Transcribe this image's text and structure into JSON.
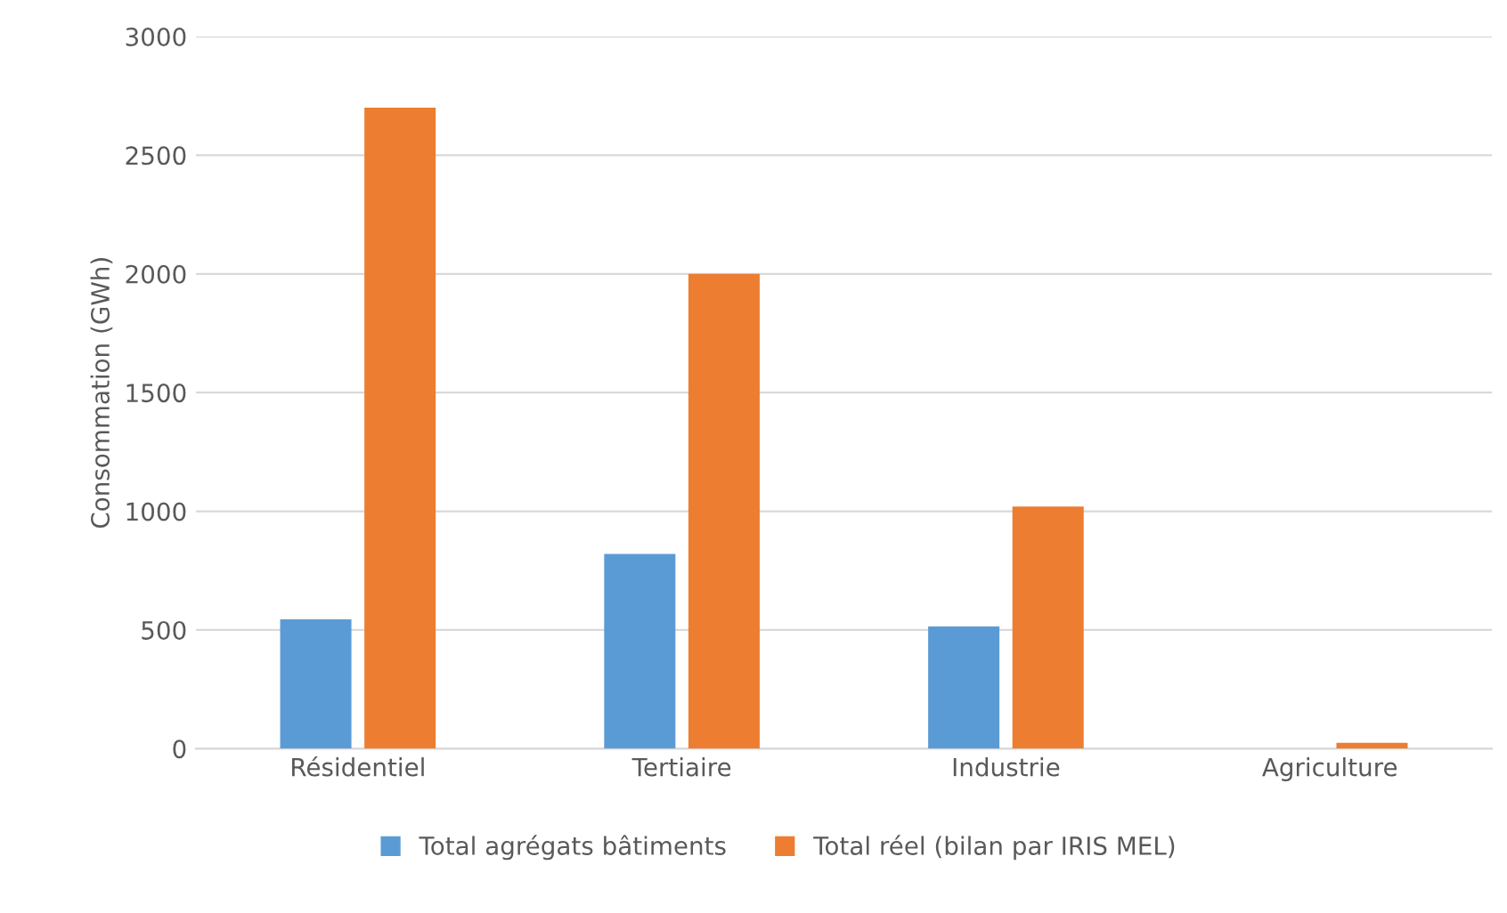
{
  "chart_data": {
    "type": "bar",
    "ylabel": "Consommation (GWh)",
    "categories": [
      "Résidentiel",
      "Tertiaire",
      "Industrie",
      "Agriculture"
    ],
    "series": [
      {
        "name": "Total agrégats bâtiments",
        "color": "#5b9bd5",
        "values": [
          545,
          820,
          515,
          0
        ]
      },
      {
        "name": "Total réel (bilan par IRIS MEL)",
        "color": "#ed7d31",
        "values": [
          2700,
          2000,
          1020,
          25
        ]
      }
    ],
    "ylim": [
      0,
      3000
    ],
    "yticks": [
      0,
      500,
      1000,
      1500,
      2000,
      2500,
      3000
    ],
    "grid": "y",
    "legend": "bottom"
  }
}
